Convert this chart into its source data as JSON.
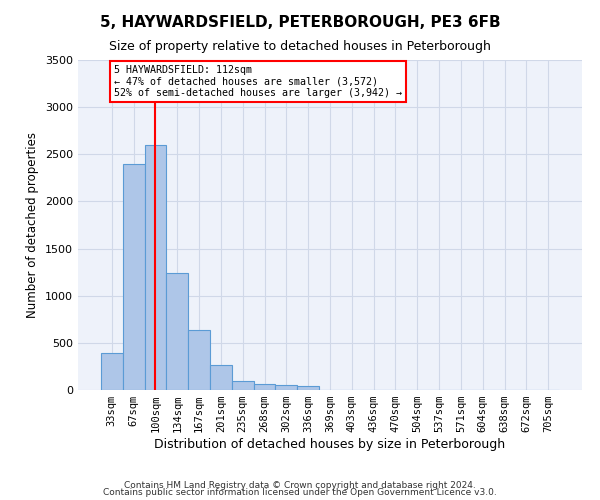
{
  "title": "5, HAYWARDSFIELD, PETERBOROUGH, PE3 6FB",
  "subtitle": "Size of property relative to detached houses in Peterborough",
  "xlabel": "Distribution of detached houses by size in Peterborough",
  "ylabel": "Number of detached properties",
  "footnote1": "Contains HM Land Registry data © Crown copyright and database right 2024.",
  "footnote2": "Contains public sector information licensed under the Open Government Licence v3.0.",
  "categories": [
    "33sqm",
    "67sqm",
    "100sqm",
    "134sqm",
    "167sqm",
    "201sqm",
    "235sqm",
    "268sqm",
    "302sqm",
    "336sqm",
    "369sqm",
    "403sqm",
    "436sqm",
    "470sqm",
    "504sqm",
    "537sqm",
    "571sqm",
    "604sqm",
    "638sqm",
    "672sqm",
    "705sqm"
  ],
  "bar_values": [
    390,
    2400,
    2600,
    1240,
    640,
    260,
    100,
    60,
    55,
    40,
    0,
    0,
    0,
    0,
    0,
    0,
    0,
    0,
    0,
    0,
    0
  ],
  "bar_color": "#aec6e8",
  "bar_edgecolor": "#5b9bd5",
  "grid_color": "#d0d8e8",
  "background_color": "#eef2fa",
  "vline_x_index": 2,
  "vline_color": "red",
  "annotation_text": "5 HAYWARDSFIELD: 112sqm\n← 47% of detached houses are smaller (3,572)\n52% of semi-detached houses are larger (3,942) →",
  "annotation_box_color": "white",
  "annotation_box_edgecolor": "red",
  "ylim": [
    0,
    3500
  ],
  "yticks": [
    0,
    500,
    1000,
    1500,
    2000,
    2500,
    3000,
    3500
  ]
}
